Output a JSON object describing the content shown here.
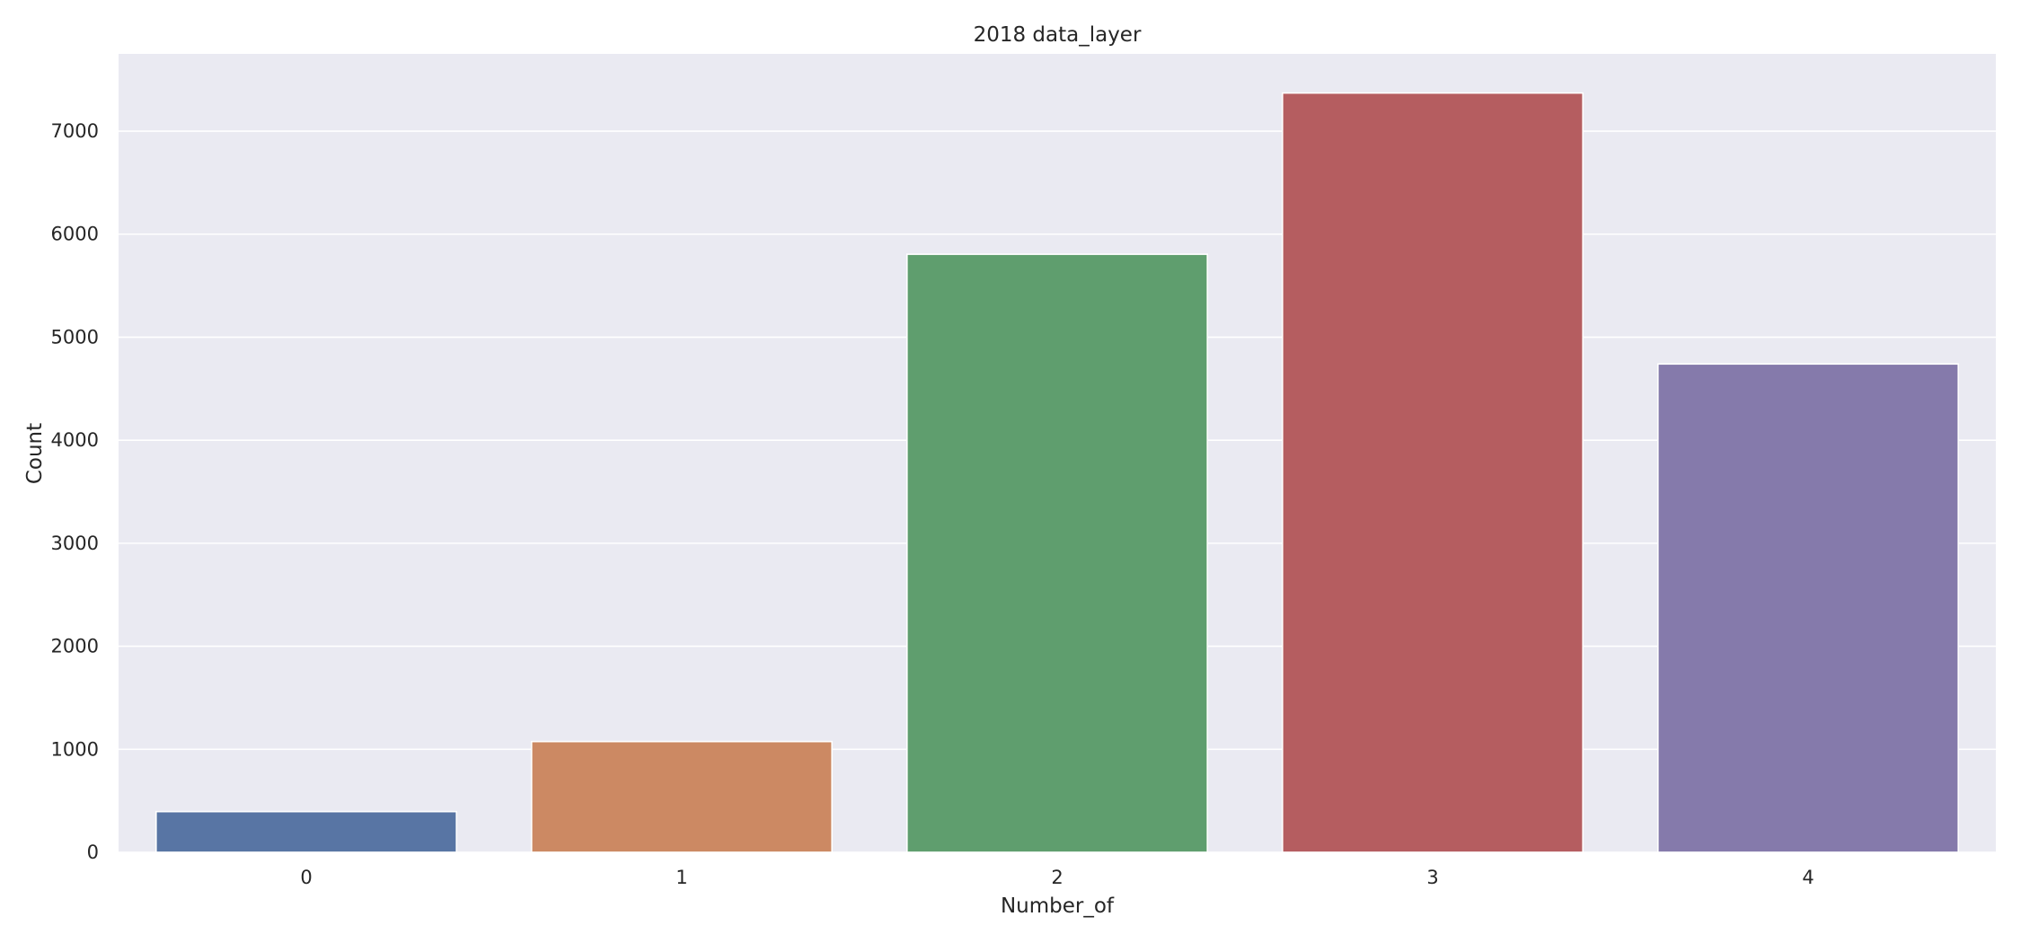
{
  "chart_data": {
    "type": "bar",
    "title": "2018 data_layer",
    "xlabel": "Number_of",
    "ylabel": "Count",
    "categories": [
      "0",
      "1",
      "2",
      "3",
      "4"
    ],
    "values": [
      395,
      1075,
      5805,
      7370,
      4740
    ],
    "colors": [
      "#5875a4",
      "#cc8963",
      "#5f9e6e",
      "#b55d60",
      "#857aab"
    ],
    "ylim": [
      0,
      7750
    ],
    "yticks": [
      0,
      1000,
      2000,
      3000,
      4000,
      5000,
      6000,
      7000
    ],
    "grid": true,
    "background": "#eaeaf2",
    "legend": "none"
  }
}
